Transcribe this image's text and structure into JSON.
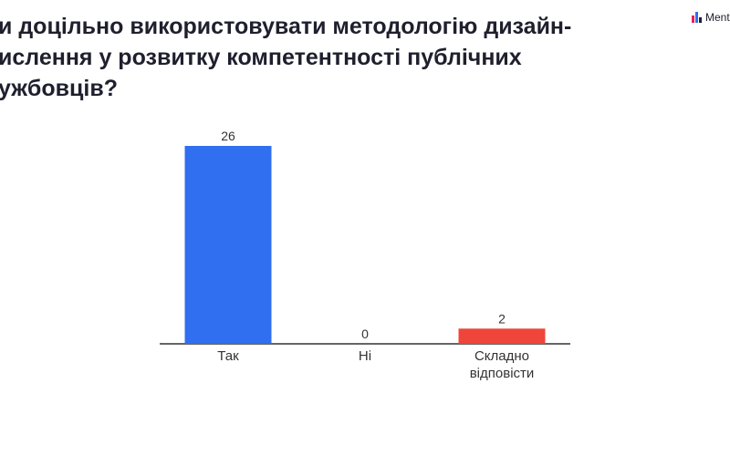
{
  "logo": {
    "text": "Ment"
  },
  "chart_data": {
    "type": "bar",
    "title": "и доцільно використовувати методологію дизайн-\nислення у розвитку компетентності публічних\nужбовців?",
    "categories": [
      "Так",
      "Ні",
      "Складно відповісти"
    ],
    "values": [
      26,
      0,
      2
    ],
    "colors": [
      "#2f6ff0",
      "#2f6ff0",
      "#f0453a"
    ]
  }
}
